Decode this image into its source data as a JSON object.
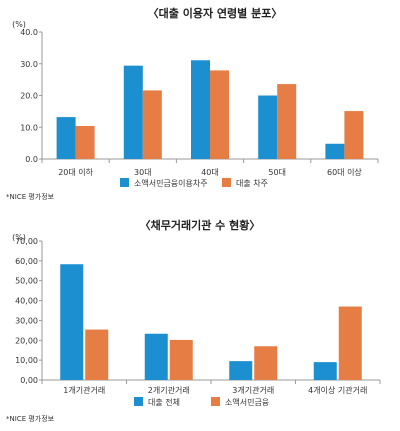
{
  "colors": {
    "series_a": "#1c8fd1",
    "series_b": "#e67d45",
    "axis": "#9a9a9a",
    "text": "#333333"
  },
  "chart_data": [
    {
      "type": "bar",
      "title": "〈대출 이용자 연령별 분포〉",
      "ylabel": "(%)",
      "categories": [
        "20대 이하",
        "30대",
        "40대",
        "50대",
        "60대 이상"
      ],
      "yticks": [
        "0.0",
        "10.0",
        "20.0",
        "30.0",
        "40.0"
      ],
      "ylim": [
        0,
        40
      ],
      "grid": false,
      "legend_position": "bottom",
      "series": [
        {
          "name": "소액서민금융이용차주",
          "color": "#1c8fd1",
          "values": [
            13.2,
            29.4,
            31.1,
            20.0,
            4.8
          ]
        },
        {
          "name": "대출 차주",
          "color": "#e67d45",
          "values": [
            10.4,
            21.6,
            27.9,
            23.6,
            15.1
          ]
        }
      ],
      "source": "*NICE 평가정보"
    },
    {
      "type": "bar",
      "title": "〈채무거래기관 수 현황〉",
      "ylabel": "(%)",
      "categories": [
        "1개기관거래",
        "2개기관거래",
        "3개기관거래",
        "4개이상 기관거래"
      ],
      "yticks": [
        "0,00",
        "10,00",
        "20,00",
        "30,00",
        "40,00",
        "50,00",
        "60,00",
        "70,00"
      ],
      "ylim": [
        0,
        70
      ],
      "grid": false,
      "legend_position": "bottom",
      "series": [
        {
          "name": "대출 전체",
          "color": "#1c8fd1",
          "values": [
            58.3,
            23.3,
            9.5,
            9.0
          ]
        },
        {
          "name": "소액서민금융",
          "color": "#e67d45",
          "values": [
            25.4,
            20.2,
            17.0,
            37.0
          ]
        }
      ],
      "source": "*NICE 평가정보"
    }
  ]
}
